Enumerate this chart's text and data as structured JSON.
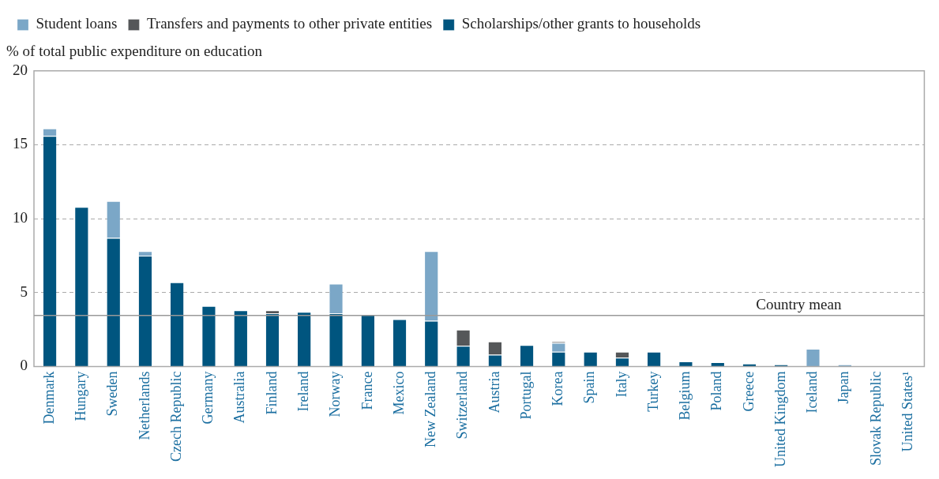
{
  "chart_data": {
    "type": "bar",
    "stacked": true,
    "ylabel": "% of total public expenditure on education",
    "categories": [
      "Denmark",
      "Hungary",
      "Sweden",
      "Netherlands",
      "Czech Republic",
      "Germany",
      "Australia",
      "Finland",
      "Ireland",
      "Norway",
      "France",
      "Mexico",
      "New Zealand",
      "Switzerland",
      "Austria",
      "Portugal",
      "Korea",
      "Spain",
      "Italy",
      "Turkey",
      "Belgium",
      "Poland",
      "Greece",
      "United Kingdom",
      "Iceland",
      "Japan",
      "Slovak Republic",
      "United States¹"
    ],
    "series": [
      {
        "name": "Scholarships/other grants to households",
        "color": "#00557f",
        "values": [
          15.6,
          10.8,
          8.7,
          7.5,
          5.7,
          4.1,
          3.8,
          3.6,
          3.7,
          3.6,
          3.5,
          3.2,
          3.1,
          1.4,
          0.8,
          1.45,
          1.0,
          1.0,
          0.6,
          1.0,
          0.35,
          0.3,
          0.2,
          0.15,
          0,
          0,
          0,
          0
        ]
      },
      {
        "name": "Student loans",
        "color": "#7ba7c7",
        "values": [
          0.5,
          0,
          2.5,
          0.3,
          0,
          0,
          0,
          0,
          0,
          2.0,
          0,
          0,
          4.7,
          0,
          0,
          0,
          0.6,
          0,
          0,
          0,
          0,
          0,
          0,
          0,
          1.2,
          0.15,
          0,
          0
        ]
      },
      {
        "name": "Transfers and payments to other private entities",
        "color": "#555759",
        "values": [
          0,
          0,
          0,
          0,
          0,
          0,
          0,
          0.2,
          0,
          0,
          0,
          0,
          0,
          1.1,
          0.9,
          0,
          0.1,
          0,
          0.4,
          0,
          0,
          0,
          0,
          0,
          0,
          0,
          0,
          0
        ]
      }
    ],
    "ylim": [
      0,
      20
    ],
    "yticks": [
      0,
      5,
      10,
      15,
      20
    ],
    "grid": "y",
    "legend": "top left",
    "ref_lines": [
      {
        "axis": "y",
        "value": 3.46,
        "label": "Country mean",
        "color": "#999999"
      }
    ]
  }
}
